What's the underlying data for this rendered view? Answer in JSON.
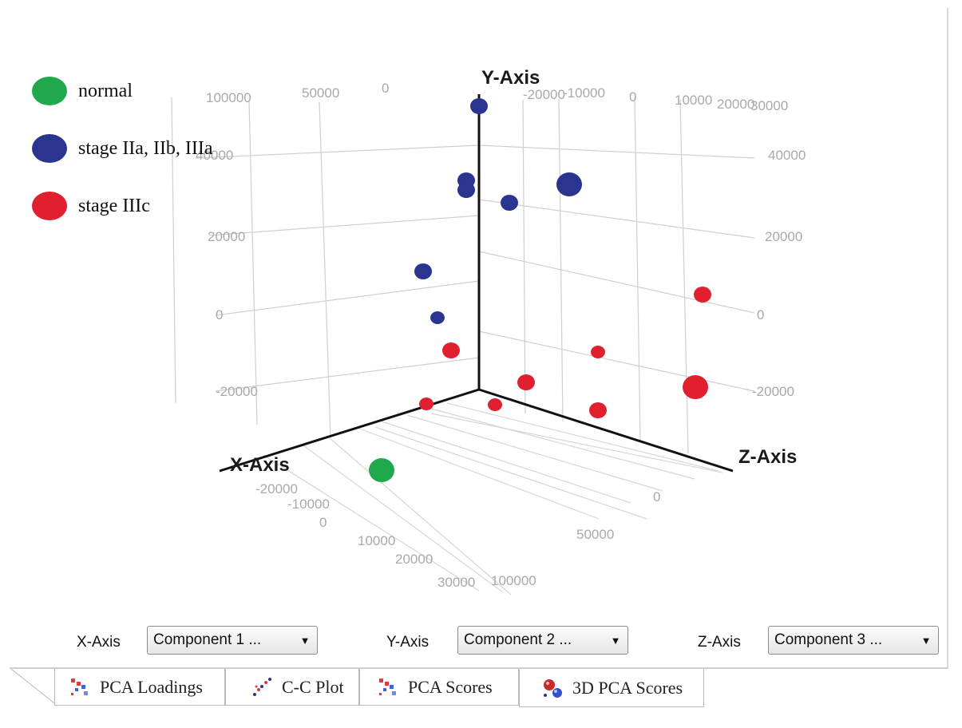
{
  "legend": [
    {
      "label": "normal",
      "color": "#1fa84c"
    },
    {
      "label": "stage IIa, IIb, IIIa",
      "color": "#2a3590"
    },
    {
      "label": "stage IIIc",
      "color": "#e1202f"
    }
  ],
  "axes": {
    "x_title": "X-Axis",
    "y_title": "Y-Axis",
    "z_title": "Z-Axis",
    "back_top_ticks": [
      "100000",
      "50000",
      "0",
      "-20000",
      "-10000",
      "0",
      "10000",
      "20000",
      "30000"
    ],
    "left_y_ticks": [
      "40000",
      "20000",
      "0",
      "-20000"
    ],
    "right_y_ticks": [
      "40000",
      "20000",
      "0",
      "-20000"
    ],
    "x_floor_ticks": [
      "-20000",
      "-10000",
      "0",
      "10000",
      "20000",
      "30000"
    ],
    "z_floor_ticks": [
      "0",
      "50000",
      "100000"
    ]
  },
  "points": [
    {
      "group": 1,
      "size": "medium"
    },
    {
      "group": 1,
      "size": "medium"
    },
    {
      "group": 1,
      "size": "medium"
    },
    {
      "group": 1,
      "size": "large"
    },
    {
      "group": 1,
      "size": "medium"
    },
    {
      "group": 1,
      "size": "medium"
    },
    {
      "group": 1,
      "size": "small"
    },
    {
      "group": 2,
      "size": "medium"
    },
    {
      "group": 2,
      "size": "small"
    },
    {
      "group": 2,
      "size": "medium"
    },
    {
      "group": 2,
      "size": "medium"
    },
    {
      "group": 2,
      "size": "large"
    },
    {
      "group": 2,
      "size": "small"
    },
    {
      "group": 2,
      "size": "small"
    },
    {
      "group": 2,
      "size": "medium"
    },
    {
      "group": 0,
      "size": "large"
    }
  ],
  "controls": [
    {
      "label": "X-Axis",
      "value": "Component 1 ..."
    },
    {
      "label": "Y-Axis",
      "value": "Component 2 ..."
    },
    {
      "label": "Z-Axis",
      "value": "Component 3 ..."
    }
  ],
  "tabs": [
    {
      "label": "PCA Loadings",
      "icon": "scatter-pca-icon"
    },
    {
      "label": "C-C Plot",
      "icon": "scatter-cc-icon"
    },
    {
      "label": "PCA Scores",
      "icon": "scatter-pca-icon"
    },
    {
      "label": "3D PCA Scores",
      "icon": "spheres-3d-icon"
    }
  ]
}
